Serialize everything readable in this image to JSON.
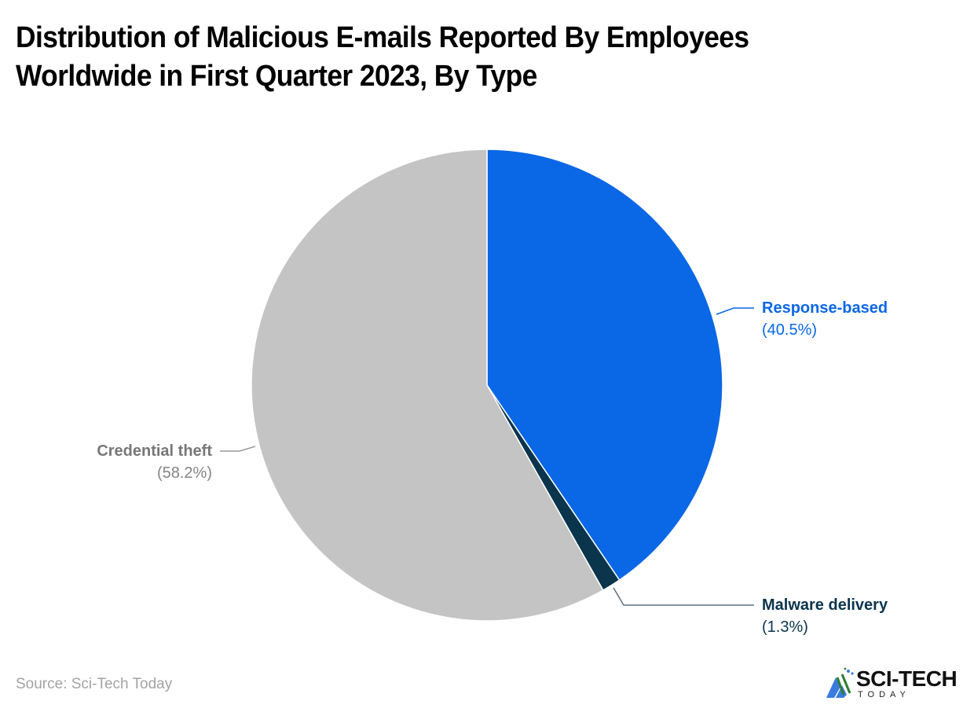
{
  "title": {
    "line1": "Distribution of Malicious E-mails Reported By Employees",
    "line2": "Worldwide in First Quarter 2023, By Type"
  },
  "labels": {
    "response": {
      "name": "Response-based",
      "pct": "(40.5%)"
    },
    "malware": {
      "name": "Malware delivery",
      "pct": "(1.3%)"
    },
    "credential": {
      "name": "Credential theft",
      "pct": "(58.2%)"
    }
  },
  "footer": {
    "source": "Source: Sci-Tech Today",
    "logo_main": "SCI-TECH",
    "logo_sub": "TODAY"
  },
  "colors": {
    "response": "#0a67e6",
    "malware": "#0b344d",
    "credential": "#c4c4c4"
  },
  "chart_data": {
    "type": "pie",
    "title": "Distribution of Malicious E-mails Reported By Employees Worldwide in First Quarter 2023, By Type",
    "categories": [
      "Response-based",
      "Malware delivery",
      "Credential theft"
    ],
    "values": [
      40.5,
      1.3,
      58.2
    ],
    "unit": "%",
    "colors": [
      "#0a67e6",
      "#0b344d",
      "#c4c4c4"
    ],
    "start_angle": "12 o'clock, clockwise",
    "legend": "none (direct labels with leader lines)",
    "source": "Sci-Tech Today"
  }
}
